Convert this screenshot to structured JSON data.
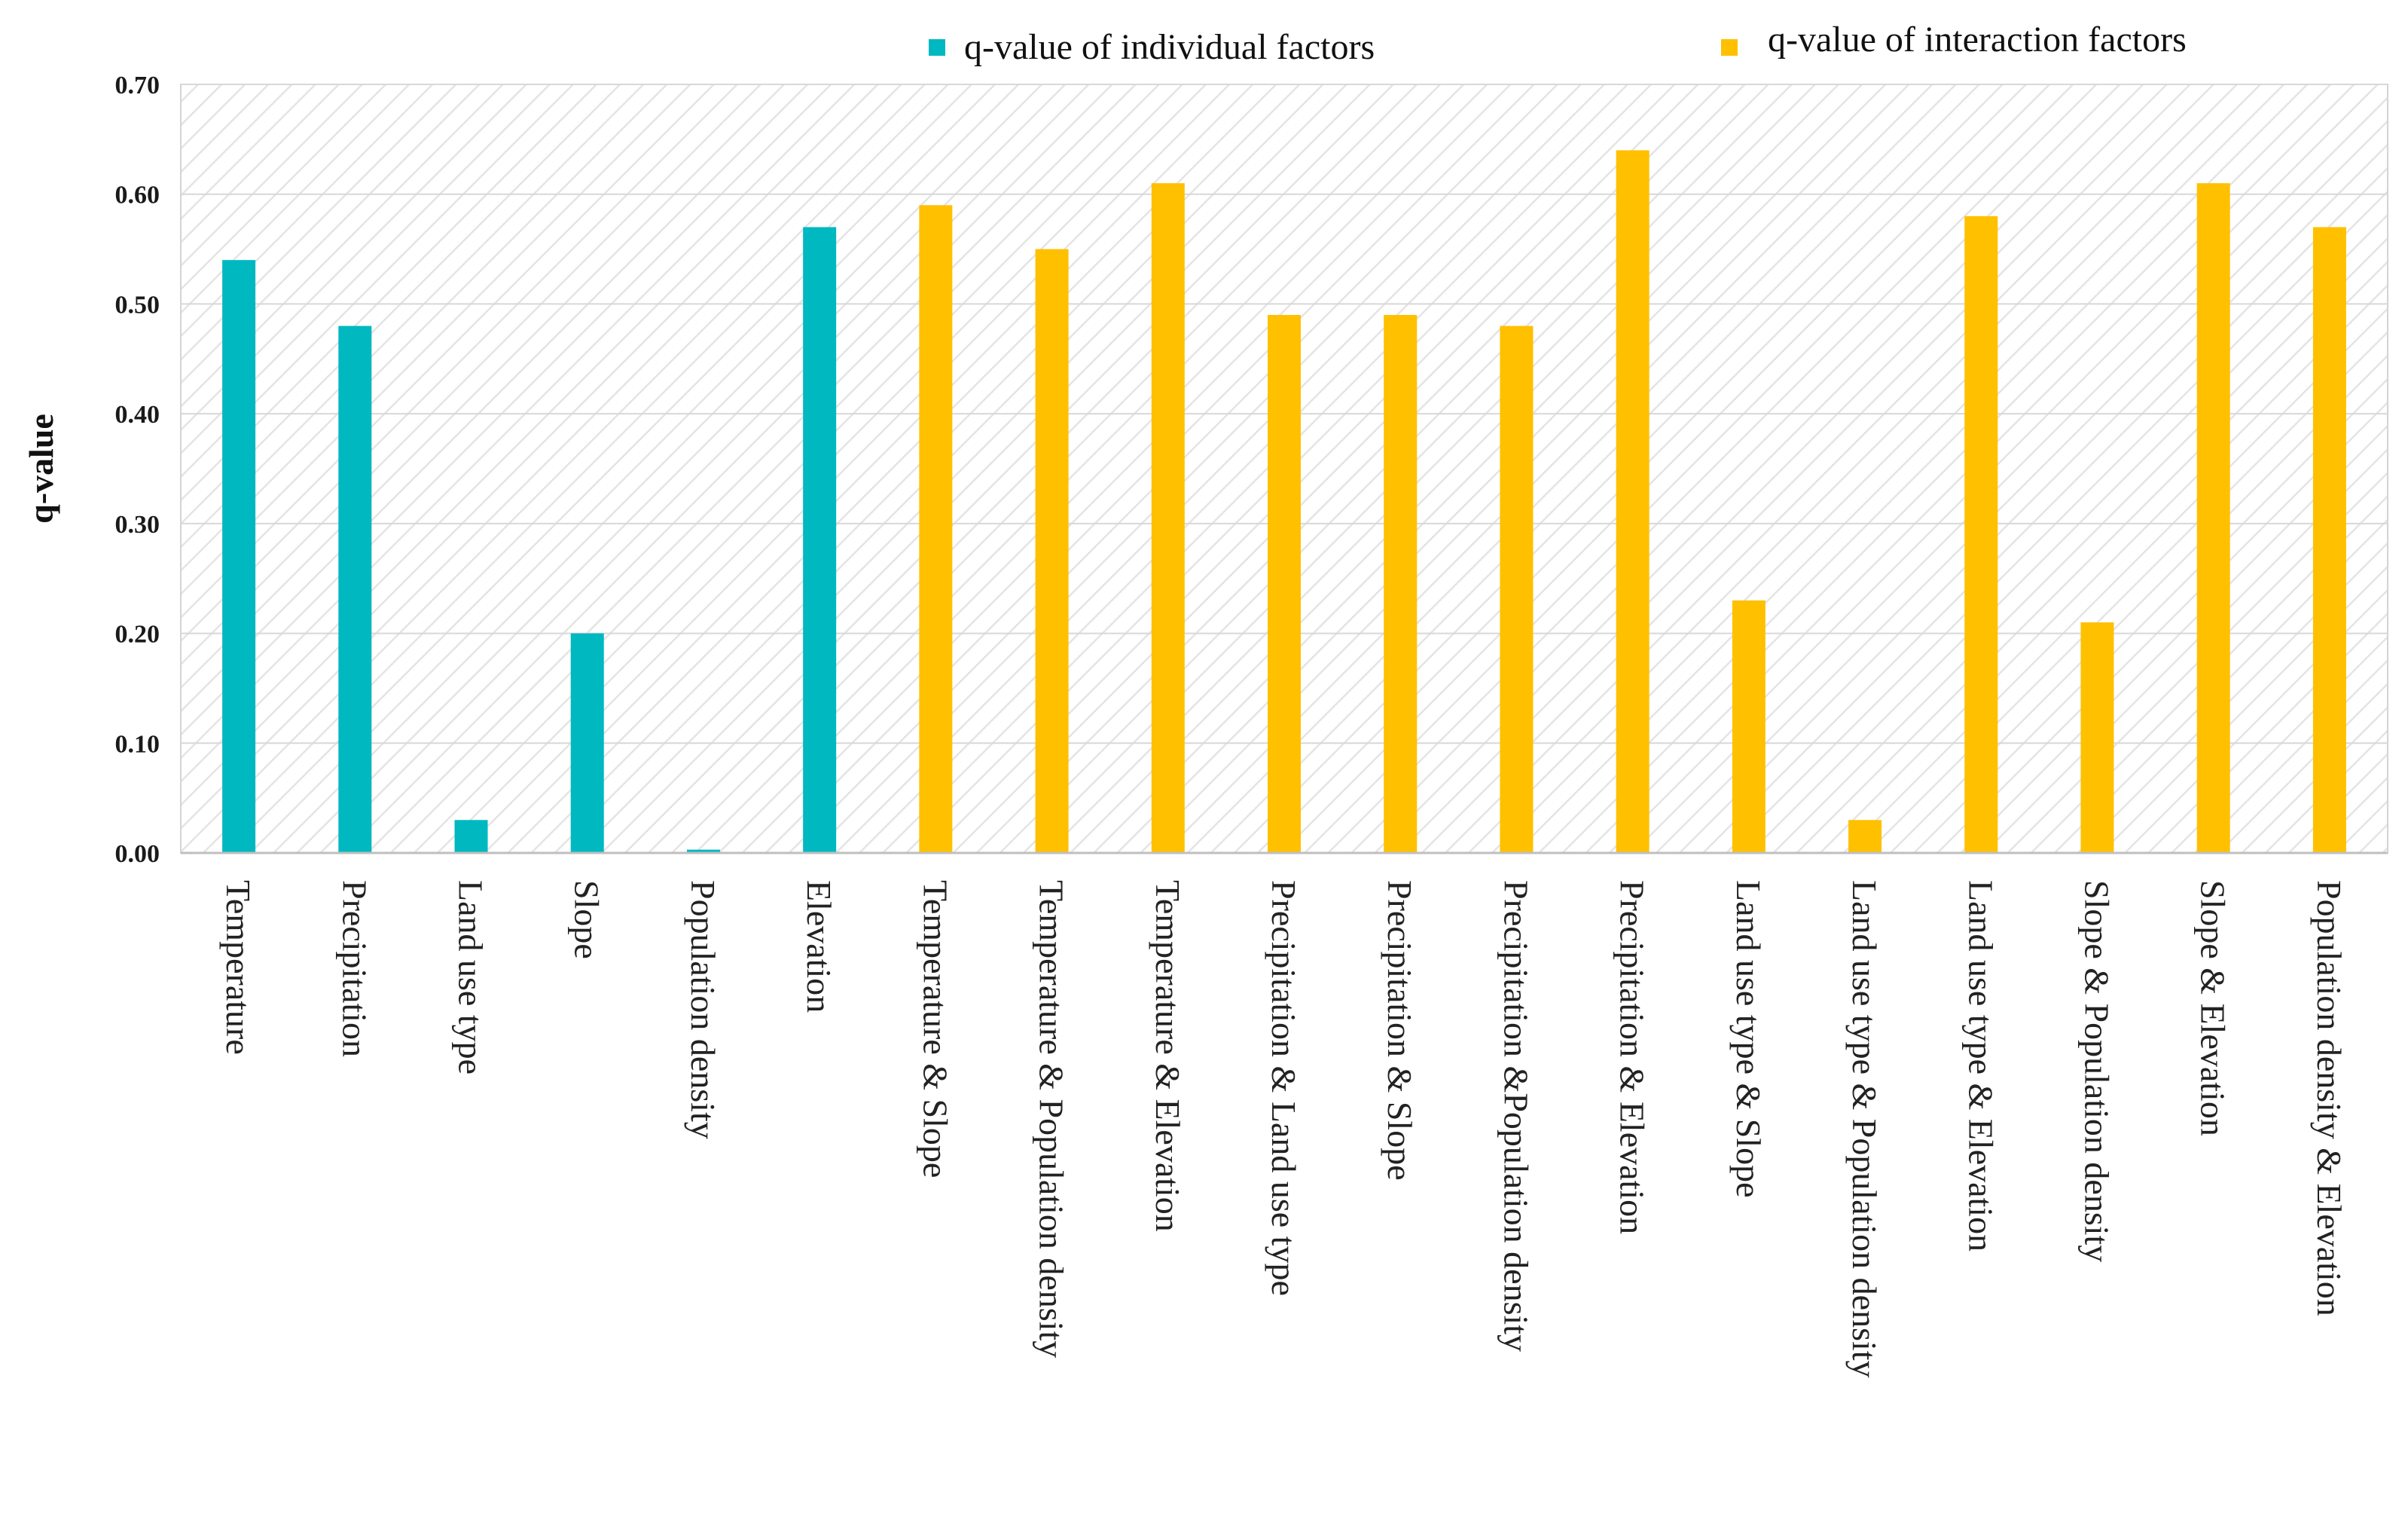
{
  "chart_data": {
    "type": "bar",
    "title": "",
    "xlabel": "",
    "ylabel": "q-value",
    "ylim": [
      0,
      0.7
    ],
    "yticks": [
      "0.00",
      "0.10",
      "0.20",
      "0.30",
      "0.40",
      "0.50",
      "0.60",
      "0.70"
    ],
    "grid": true,
    "legend_position": "top-right",
    "legend": [
      {
        "name": "q-value of individual factors",
        "color": "#00B8C0"
      },
      {
        "name": "q-value of interaction factors",
        "color": "#FFC000"
      }
    ],
    "categories": [
      "Temperature",
      "Precipitation",
      "Land use type",
      "Slope",
      "Population density",
      "Elevation",
      "Temperature & Slope",
      "Temperature & Population density",
      "Temperature & Elevation",
      "Precipitation & Land use type",
      "Precipitation & Slope",
      "Precipitation &Population density",
      "Precipitation & Elevation",
      "Land use type & Slope",
      "Land use type & Population density",
      "Land use type & Elevation",
      "Slope & Population density",
      "Slope & Elevation",
      "Population density & Elevation"
    ],
    "values": [
      0.54,
      0.48,
      0.03,
      0.2,
      0.003,
      0.57,
      0.59,
      0.55,
      0.61,
      0.49,
      0.49,
      0.48,
      0.64,
      0.23,
      0.03,
      0.58,
      0.21,
      0.61,
      0.57
    ],
    "groups": [
      0,
      0,
      0,
      0,
      0,
      0,
      1,
      1,
      1,
      1,
      1,
      1,
      1,
      1,
      1,
      1,
      1,
      1,
      1
    ]
  }
}
